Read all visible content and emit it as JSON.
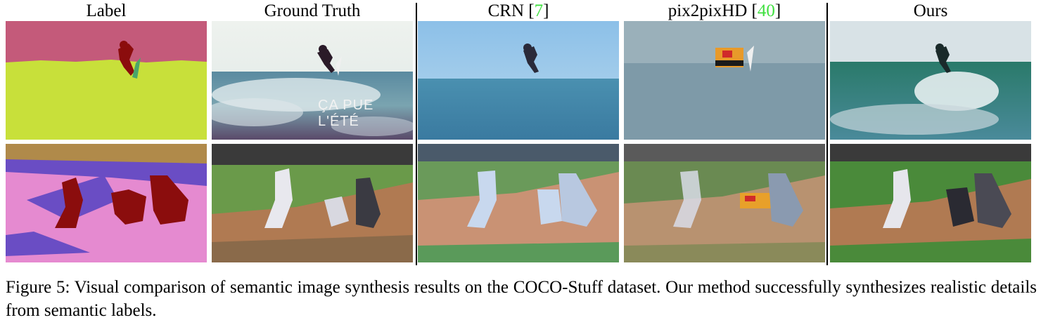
{
  "columns": [
    {
      "title": "Label",
      "ref": ""
    },
    {
      "title": "Ground Truth",
      "ref": ""
    },
    {
      "title": "CRN [",
      "ref": "7",
      "close": "]"
    },
    {
      "title": "pix2pixHD [",
      "ref": "40",
      "close": "]"
    },
    {
      "title": "Ours",
      "ref": ""
    }
  ],
  "watermark": "ÇA PUE L'ÉTÉ",
  "caption": "Figure 5: Visual comparison of semantic image synthesis results on the COCO-Stuff dataset. Our method successfully synthesizes realistic details from semantic labels.",
  "colors": {
    "label_sky": "#c45a7a",
    "label_sea": "#c8e03a",
    "label_person": "#8b0d0d",
    "label_board": "#4aa66a",
    "label_field_pink": "#e58ad0",
    "label_field_purple": "#6a4dc4",
    "label_dirt": "#b08a4a",
    "ref_green": "#3fe03f"
  }
}
